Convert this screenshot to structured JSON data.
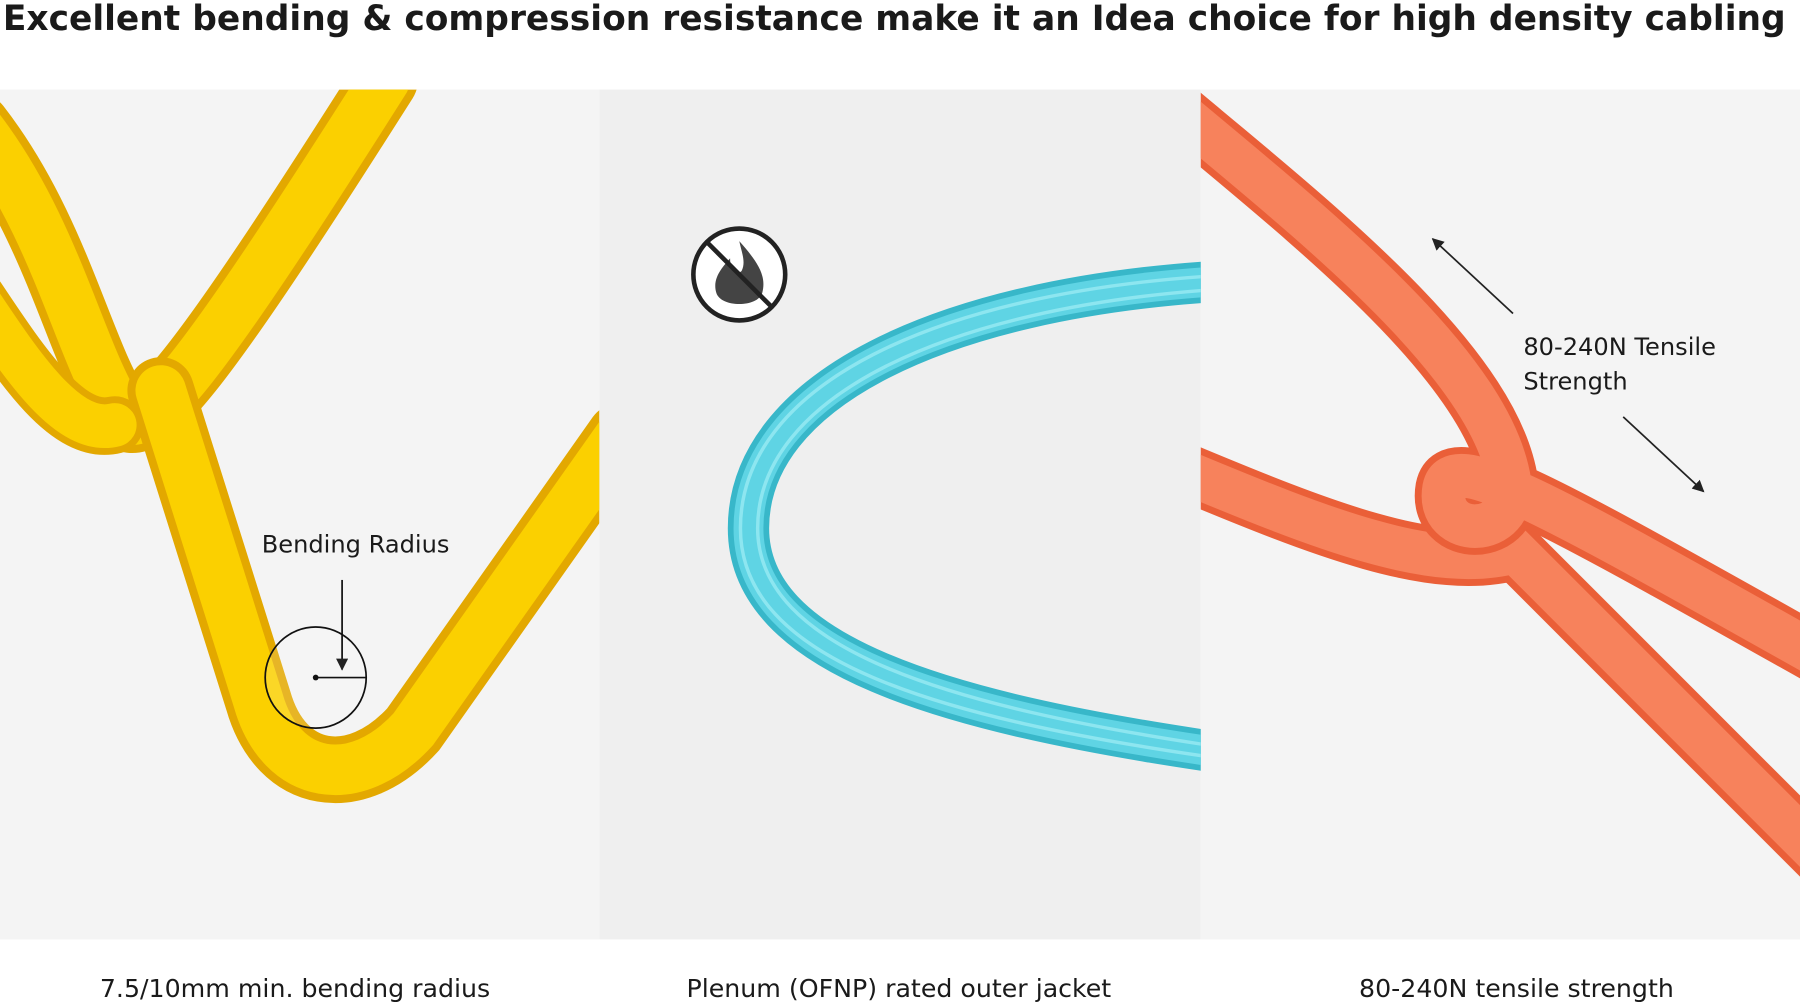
{
  "header": {
    "title": "Excellent bending & compression resistance make it an Idea choice for high density cabling"
  },
  "panels": [
    {
      "annotation": [
        "Bending Radius"
      ],
      "caption": "7.5/10mm min. bending radius"
    },
    {
      "annotation": [],
      "caption": "Plenum (OFNP) rated outer jacket"
    },
    {
      "annotation": [
        "80-240N Tensile",
        "Strength"
      ],
      "caption": "80-240N tensile strength"
    }
  ]
}
